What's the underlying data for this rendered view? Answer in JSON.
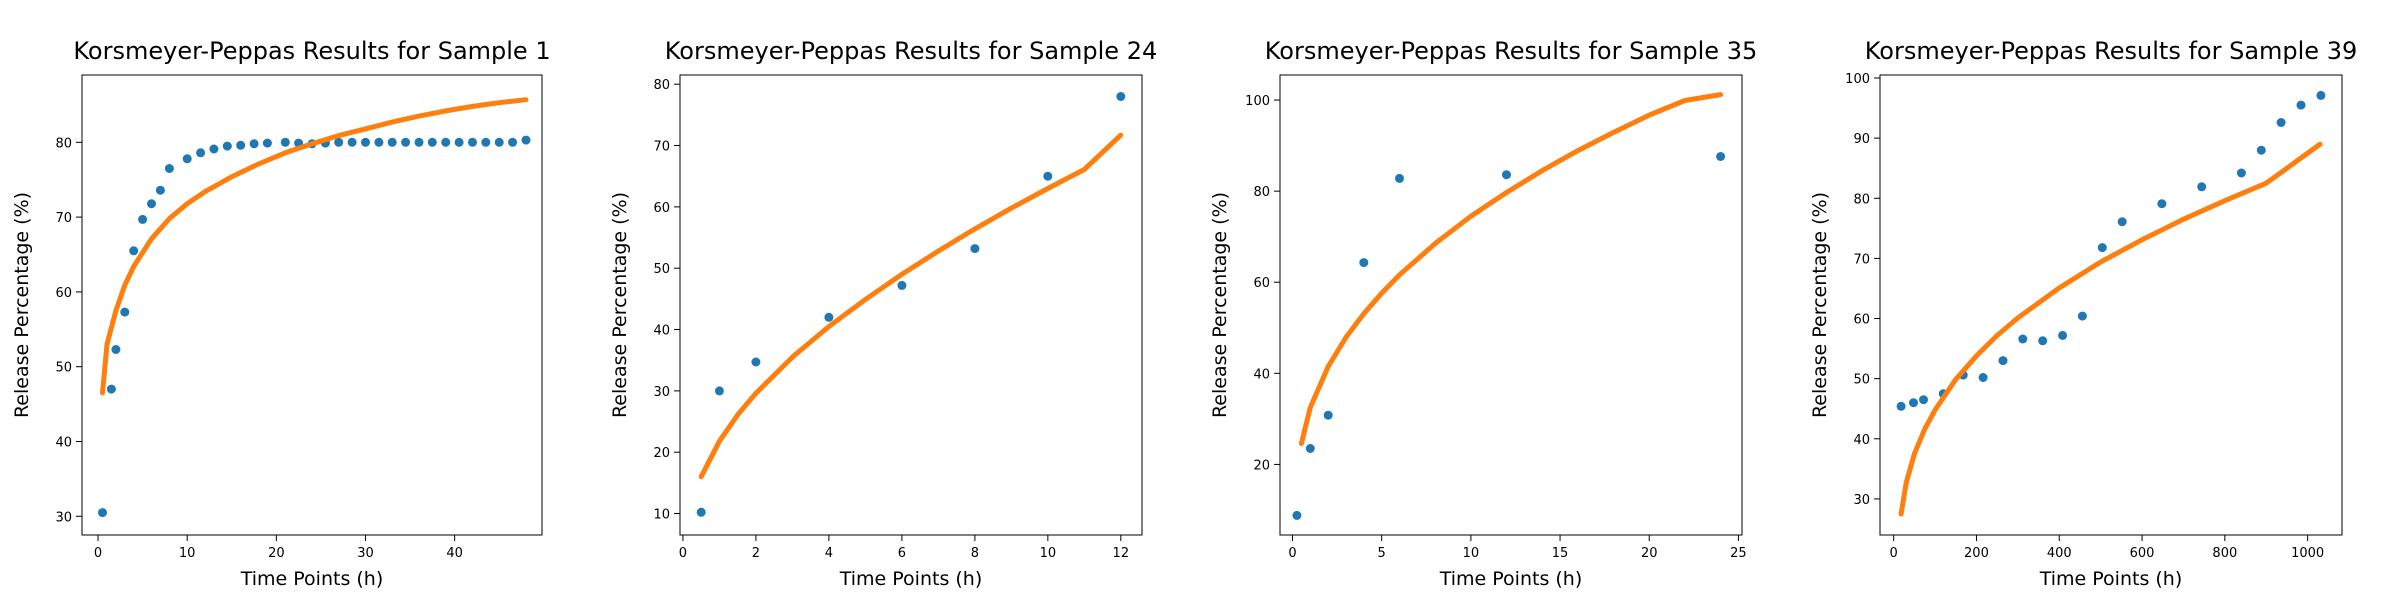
{
  "chart_data": [
    {
      "type": "scatter",
      "title": "Korsmeyer-Peppas Results for Sample 1",
      "xlabel": "Time Points (h)",
      "ylabel": "Release Percentage (%)",
      "xlim": [
        -1.8,
        49.8
      ],
      "ylim": [
        27.5,
        89.0
      ],
      "xticks": [
        0,
        10,
        20,
        30,
        40
      ],
      "yticks": [
        30,
        40,
        50,
        60,
        70,
        80
      ],
      "grid": false,
      "series": [
        {
          "kind": "scatter",
          "color": "#1f77b4",
          "x": [
            0.5,
            1.5,
            2,
            3,
            4,
            5,
            6,
            7,
            8,
            10,
            11.5,
            13,
            14.5,
            16,
            17.5,
            19,
            21,
            22.5,
            24,
            25.5,
            27,
            28.5,
            30,
            31.5,
            33,
            34.5,
            36,
            37.5,
            39,
            40.5,
            42,
            43.5,
            45,
            46.5,
            48
          ],
          "y": [
            30.5,
            47,
            52.3,
            57.3,
            65.5,
            69.7,
            71.8,
            73.6,
            76.5,
            77.8,
            78.6,
            79.1,
            79.5,
            79.6,
            79.8,
            79.9,
            80,
            79.9,
            79.8,
            79.9,
            80,
            80,
            80,
            80,
            80,
            80,
            80,
            80,
            80,
            80,
            80,
            80,
            80,
            80,
            80.3
          ]
        },
        {
          "kind": "line",
          "color": "#ff7f0e",
          "x": [
            0.5,
            1,
            2,
            3,
            4,
            6,
            8,
            10,
            12,
            15,
            18,
            21,
            24,
            27,
            30,
            33,
            36,
            39,
            42,
            45,
            48
          ],
          "y": [
            46.5,
            53,
            57.5,
            60.9,
            63.4,
            67.1,
            69.8,
            71.8,
            73.4,
            75.4,
            77.1,
            78.6,
            79.8,
            80.9,
            81.8,
            82.7,
            83.5,
            84.2,
            84.8,
            85.3,
            85.7
          ]
        }
      ]
    },
    {
      "type": "scatter",
      "title": "Korsmeyer-Peppas Results for Sample 24",
      "xlabel": "Time Points (h)",
      "ylabel": "Release Percentage (%)",
      "xlim": [
        -0.08,
        12.58
      ],
      "ylim": [
        6.5,
        81.5
      ],
      "xticks": [
        0,
        2,
        4,
        6,
        8,
        10,
        12
      ],
      "yticks": [
        10,
        20,
        30,
        40,
        50,
        60,
        70,
        80
      ],
      "grid": false,
      "series": [
        {
          "kind": "scatter",
          "color": "#1f77b4",
          "x": [
            0.5,
            1,
            2,
            4,
            6,
            8,
            10,
            12
          ],
          "y": [
            10.2,
            30,
            34.7,
            42,
            47.2,
            53.2,
            65,
            78
          ]
        },
        {
          "kind": "line",
          "color": "#ff7f0e",
          "x": [
            0.5,
            1,
            1.5,
            2,
            3,
            4,
            5,
            6,
            7,
            8,
            9,
            10,
            11,
            12
          ],
          "y": [
            16,
            21.8,
            26.1,
            29.6,
            35.5,
            40.5,
            44.9,
            49,
            52.8,
            56.4,
            59.8,
            63,
            66.1,
            71.7
          ]
        }
      ]
    },
    {
      "type": "scatter",
      "title": "Korsmeyer-Peppas Results for Sample 35",
      "xlabel": "Time Points (h)",
      "ylabel": "Release Percentage (%)",
      "xlim": [
        -0.7,
        25.2
      ],
      "ylim": [
        4.5,
        105.5
      ],
      "xticks": [
        0,
        5,
        10,
        15,
        20,
        25
      ],
      "yticks": [
        20,
        40,
        60,
        80,
        100
      ],
      "grid": false,
      "series": [
        {
          "kind": "scatter",
          "color": "#1f77b4",
          "x": [
            0.25,
            1,
            2,
            4,
            6,
            12,
            24
          ],
          "y": [
            8.8,
            23.5,
            30.8,
            64.3,
            82.8,
            83.6,
            87.6
          ]
        },
        {
          "kind": "line",
          "color": "#ff7f0e",
          "x": [
            0.5,
            1,
            2,
            3,
            4,
            5,
            6,
            8,
            10,
            12,
            14,
            16,
            18,
            20,
            22,
            24
          ],
          "y": [
            24.6,
            32.5,
            41.5,
            47.9,
            53.1,
            57.6,
            61.6,
            68.5,
            74.5,
            79.7,
            84.5,
            88.9,
            92.9,
            96.7,
            99.9,
            101.2
          ]
        }
      ]
    },
    {
      "type": "scatter",
      "title": "Korsmeyer-Peppas Results for Sample 39",
      "xlabel": "Time Points (h)",
      "ylabel": "Release Percentage (%)",
      "xlim": [
        -33,
        1083
      ],
      "ylim": [
        24.0,
        100.5
      ],
      "xticks": [
        0,
        200,
        400,
        600,
        800,
        1000
      ],
      "yticks": [
        30,
        40,
        50,
        60,
        70,
        80,
        90,
        100
      ],
      "grid": false,
      "series": [
        {
          "kind": "scatter",
          "color": "#1f77b4",
          "x": [
            18,
            48,
            72,
            120,
            168,
            216,
            264,
            312,
            360,
            408,
            456,
            504,
            552,
            648,
            744,
            840,
            888,
            936,
            984,
            1032
          ],
          "y": [
            45.4,
            46,
            46.5,
            47.5,
            50.6,
            50.2,
            53,
            56.6,
            56.3,
            57.2,
            60.4,
            71.8,
            76.1,
            79.1,
            81.9,
            84.2,
            88,
            92.6,
            95.5,
            97.1
          ]
        },
        {
          "kind": "line",
          "color": "#ff7f0e",
          "x": [
            18,
            30,
            50,
            75,
            100,
            150,
            200,
            250,
            300,
            400,
            500,
            600,
            700,
            800,
            900,
            1030
          ],
          "y": [
            27.5,
            32.6,
            37.5,
            41.6,
            44.8,
            49.9,
            53.8,
            57.2,
            60.1,
            65.1,
            69.4,
            73.1,
            76.5,
            79.6,
            82.5,
            89
          ]
        }
      ]
    }
  ]
}
